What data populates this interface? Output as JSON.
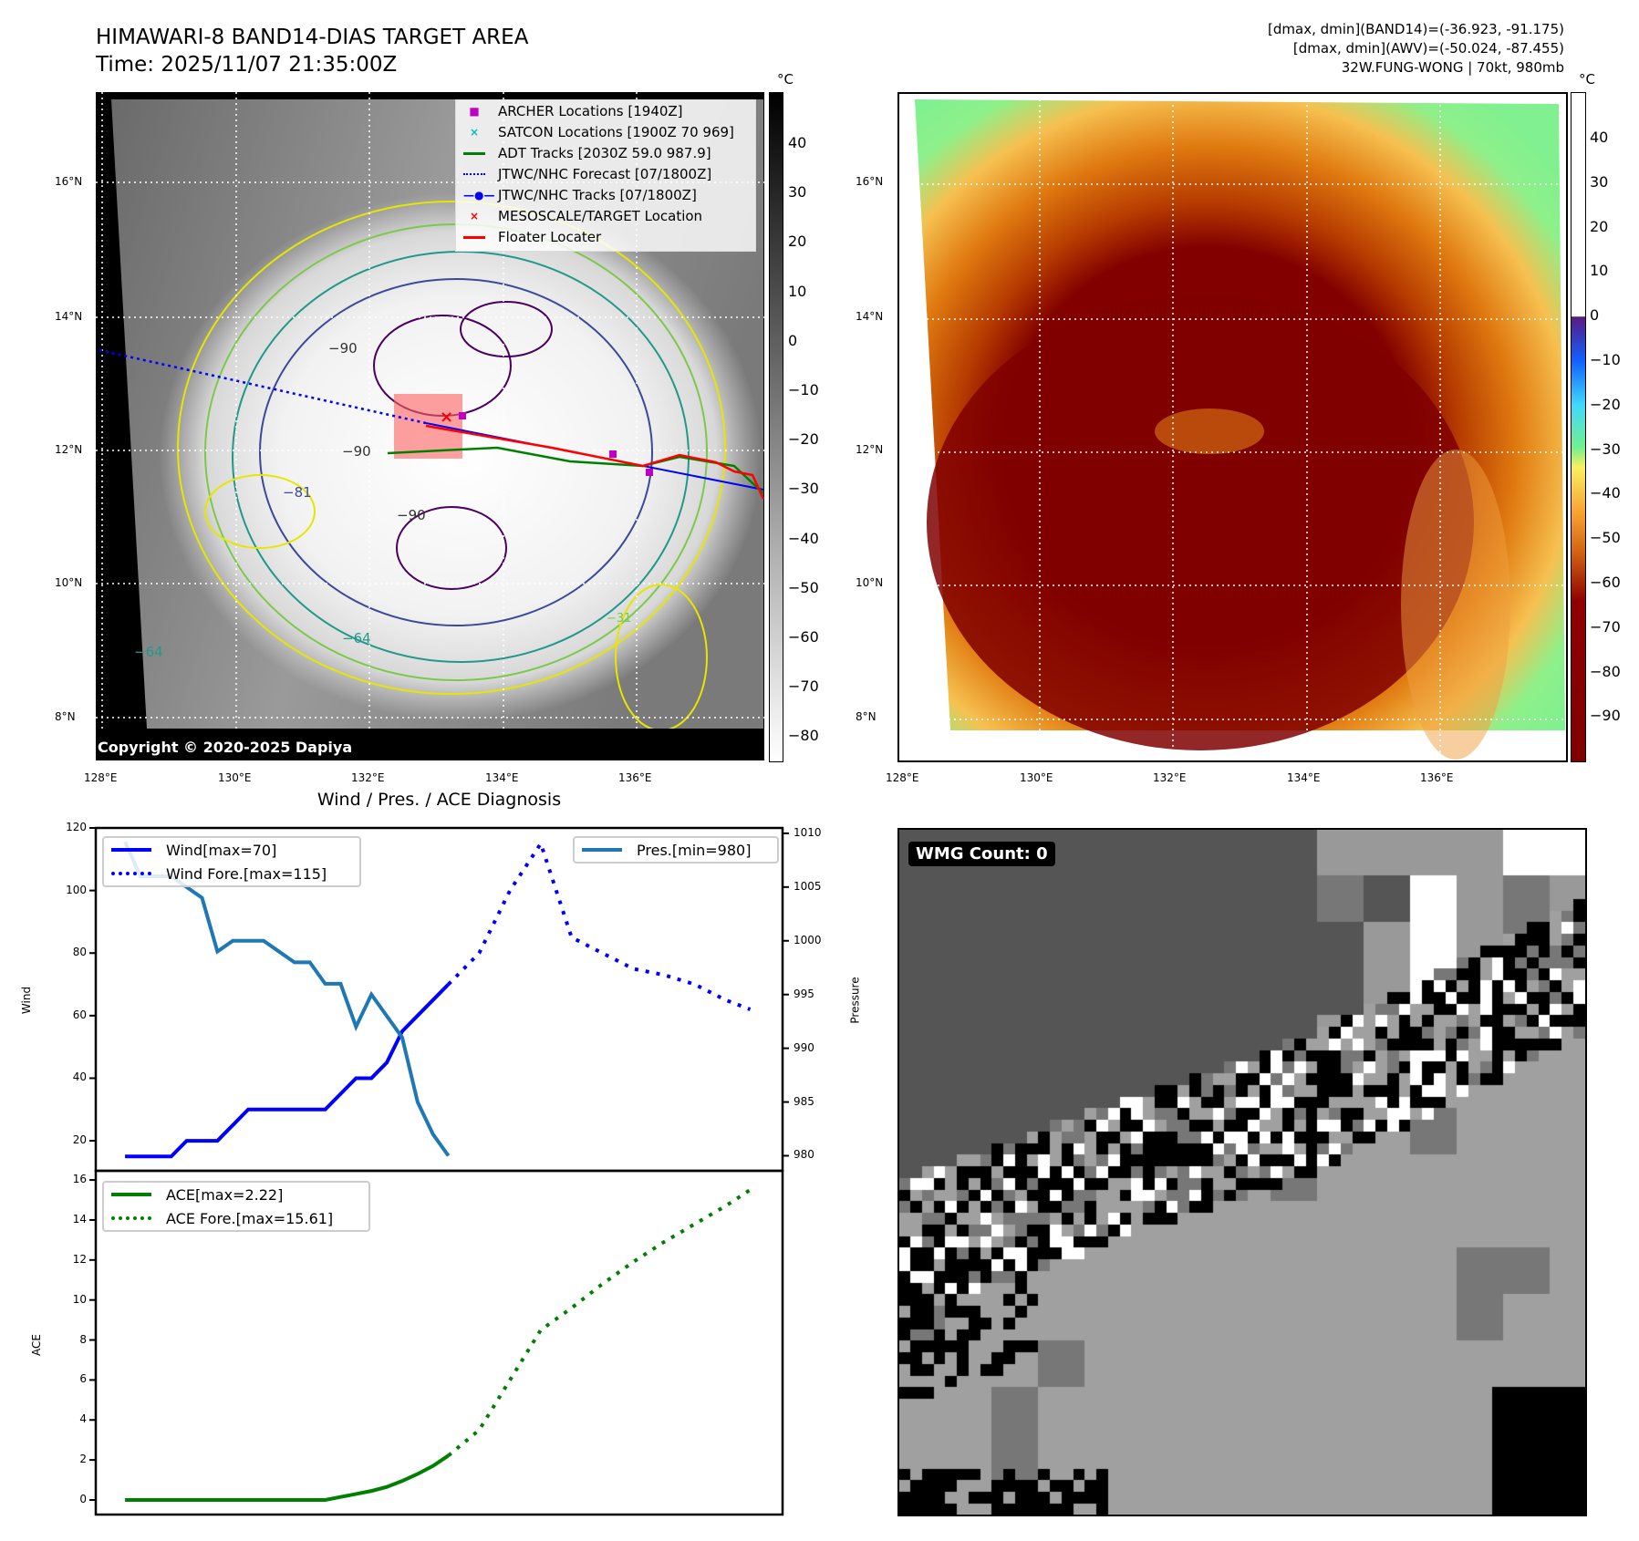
{
  "header": {
    "title": "HIMAWARI-8 BAND14-DIAS TARGET AREA",
    "time": "Time: 2025/11/07 21:35:00Z",
    "stats_band14": "[dmax, dmin](BAND14)=(-36.923, -91.175)",
    "stats_awv": "[dmax, dmin](AWV)=(-50.024, -87.455)",
    "storm": "32W.FUNG-WONG | 70kt, 980mb"
  },
  "maps": {
    "lat_labels": [
      "16°N",
      "14°N",
      "12°N",
      "10°N",
      "8°N"
    ],
    "lon_labels": [
      "128°E",
      "130°E",
      "132°E",
      "134°E",
      "136°E"
    ],
    "copyright": "Copyright © 2020-2025 Dapiya",
    "unit": "°C",
    "left_colorbar_ticks": [
      "40",
      "30",
      "20",
      "10",
      "0",
      "−10",
      "−20",
      "−30",
      "−40",
      "−50",
      "−60",
      "−70",
      "−80"
    ],
    "right_colorbar_ticks": [
      "40",
      "30",
      "20",
      "10",
      "0",
      "−10",
      "−20",
      "−30",
      "−40",
      "−50",
      "−60",
      "−70",
      "−80",
      "−90"
    ],
    "contour_labels": [
      "−90",
      "−90",
      "−81",
      "−90",
      "−64",
      "−64",
      "−31"
    ],
    "legend": [
      {
        "label": "ARCHER Locations [1940Z]",
        "marker": "■",
        "color": "#c000c0"
      },
      {
        "label": "SATCON Locations [1900Z 70 969]",
        "marker": "×",
        "color": "#00c0c0"
      },
      {
        "label": "ADT Tracks [2030Z 59.0 987.9]",
        "marker": "line",
        "color": "#008000"
      },
      {
        "label": "JTWC/NHC Forecast [07/1800Z]",
        "marker": "dotted",
        "color": "#0000ff"
      },
      {
        "label": "JTWC/NHC Tracks [07/1800Z]",
        "marker": "line-dot",
        "color": "#0000ff"
      },
      {
        "label": "MESOSCALE/TARGET Location",
        "marker": "×",
        "color": "#ff0000"
      },
      {
        "label": "Floater Locater",
        "marker": "line",
        "color": "#ff0000"
      }
    ]
  },
  "wmg": {
    "label": "WMG Count: 0"
  },
  "chart_data": [
    {
      "type": "line",
      "title": "Wind / Pres. / ACE Diagnosis",
      "ylabel": "Wind",
      "y2label": "Pressure",
      "ylim": [
        10.4,
        120
      ],
      "y2lim": [
        978.6,
        1010.5
      ],
      "xlim": [
        -1.9,
        42.7
      ],
      "yticks": [
        "120",
        "100",
        "80",
        "60",
        "40",
        "20"
      ],
      "y2ticks": [
        "1010",
        "1005",
        "1000",
        "995",
        "990",
        "985",
        "980"
      ],
      "series": [
        {
          "name": "Wind[max=70]",
          "color": "#0000ff",
          "style": "solid",
          "x": [
            0,
            1,
            2,
            3,
            4,
            5,
            6,
            7,
            8,
            9,
            10,
            11,
            12,
            13,
            14,
            15,
            16,
            17,
            18,
            19,
            20,
            21
          ],
          "values": [
            15,
            15,
            15,
            15,
            20,
            20,
            20,
            25,
            30,
            30,
            30,
            30,
            30,
            30,
            35,
            40,
            40,
            45,
            55,
            60,
            65,
            70
          ]
        },
        {
          "name": "Wind Fore.[max=115]",
          "color": "#0000ff",
          "style": "dotted",
          "x": [
            21,
            23,
            25,
            27,
            29,
            31,
            33,
            35,
            37,
            39,
            40.6
          ],
          "values": [
            70,
            80,
            100,
            115,
            85,
            80,
            75,
            73,
            70,
            65,
            62
          ]
        },
        {
          "name": "Pres.[min=980]",
          "color": "#1f77b4",
          "style": "solid",
          "axis": "right",
          "x": [
            0,
            1,
            2,
            3,
            4,
            5,
            6,
            7,
            8,
            9,
            10,
            11,
            12,
            13,
            14,
            15,
            16,
            17,
            18,
            19,
            20,
            21
          ],
          "values": [
            1009.2,
            1006,
            1006,
            1006,
            1005,
            1004,
            999,
            1000,
            1000,
            1000,
            999,
            998,
            998,
            996,
            996,
            992,
            995,
            993,
            991,
            985,
            982,
            980
          ]
        }
      ],
      "legend_left": [
        "Wind[max=70]",
        "Wind Fore.[max=115]"
      ],
      "legend_right": [
        "Pres.[min=980]"
      ]
    },
    {
      "type": "line",
      "ylabel": "ACE",
      "ylim": [
        -0.73,
        16.46
      ],
      "xlim": [
        -1.9,
        42.7
      ],
      "yticks": [
        "16",
        "14",
        "12",
        "10",
        "8",
        "6",
        "4",
        "2",
        "0"
      ],
      "series": [
        {
          "name": "ACE[max=2.22]",
          "color": "#008000",
          "style": "solid",
          "x": [
            0,
            1,
            2,
            3,
            4,
            5,
            6,
            7,
            8,
            9,
            10,
            11,
            12,
            13,
            14,
            15,
            16,
            17,
            18,
            19,
            20,
            21
          ],
          "values": [
            0,
            0,
            0,
            0,
            0,
            0,
            0,
            0,
            0,
            0,
            0,
            0,
            0,
            0,
            0.15,
            0.3,
            0.45,
            0.65,
            0.95,
            1.3,
            1.7,
            2.22
          ]
        },
        {
          "name": "ACE Fore.[max=15.61]",
          "color": "#008000",
          "style": "dotted",
          "x": [
            21,
            23,
            25,
            27,
            29,
            31,
            33,
            35,
            37,
            39,
            40.8
          ],
          "values": [
            2.22,
            3.5,
            6,
            8.5,
            9.6,
            10.8,
            11.9,
            12.9,
            13.8,
            14.7,
            15.61
          ]
        }
      ],
      "legend": [
        "ACE[max=2.22]",
        "ACE Fore.[max=15.61]"
      ]
    }
  ]
}
